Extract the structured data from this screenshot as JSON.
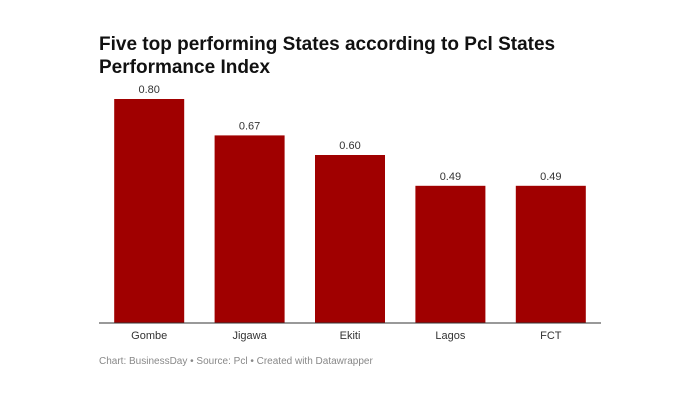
{
  "chart_data": {
    "type": "bar",
    "title": "Five top performing States according to Pcl States Performance Index",
    "categories": [
      "Gombe",
      "Jigawa",
      "Ekiti",
      "Lagos",
      "FCT"
    ],
    "values": [
      0.8,
      0.67,
      0.6,
      0.49,
      0.49
    ],
    "value_labels": [
      "0.80",
      "0.67",
      "0.60",
      "0.49",
      "0.49"
    ],
    "xlabel": "",
    "ylabel": "",
    "ylim": [
      0,
      0.8
    ],
    "grid": false,
    "bar_color": "#a00000",
    "axis_color": "#333333"
  },
  "footer": {
    "credit": "Chart: BusinessDay • Source: Pcl • Created with Datawrapper"
  }
}
